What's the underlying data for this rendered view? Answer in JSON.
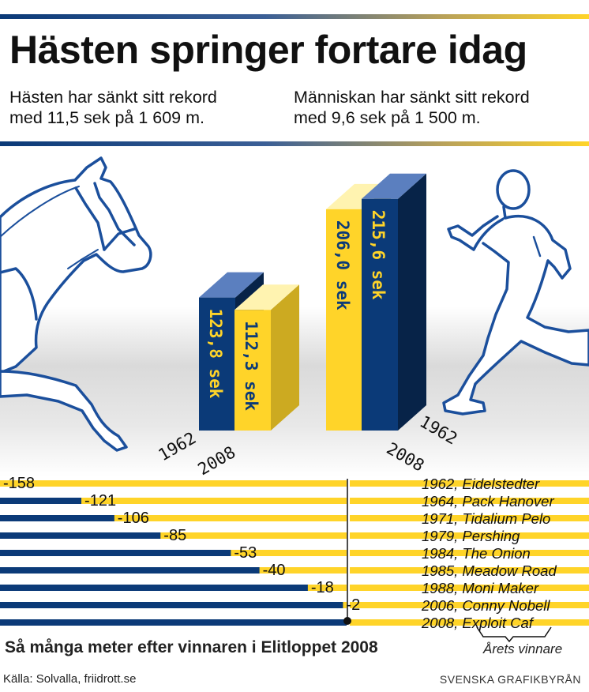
{
  "colors": {
    "navy": "#0b3a78",
    "yellow": "#ffd429",
    "outline_blue": "#1b4f9c",
    "floor_gray": "#cfcfcf"
  },
  "header": {
    "title": "Hästen springer fortare idag",
    "sub_left_1": "Hästen har sänkt sitt rekord",
    "sub_left_2": "med 11,5 sek på 1 609 m.",
    "sub_right_1": "Människan har sänkt sitt rekord",
    "sub_right_2": "med 9,6 sek på 1 500 m."
  },
  "icons": [
    "horse-head-icon",
    "runner-icon"
  ],
  "chart_data": [
    {
      "type": "bar",
      "series": [
        {
          "name": "Häst",
          "categories": [
            "1962",
            "2008"
          ],
          "values": [
            123.8,
            112.3
          ],
          "labels": [
            "123,8 sek",
            "112,3 sek"
          ],
          "colors": [
            "#0b3a78",
            "#ffd429"
          ]
        },
        {
          "name": "Människa",
          "categories": [
            "2008",
            "1962"
          ],
          "values": [
            206.0,
            215.6
          ],
          "labels": [
            "206,0 sek",
            "215,6 sek"
          ],
          "colors": [
            "#ffd429",
            "#0b3a78"
          ]
        }
      ]
    },
    {
      "type": "bar",
      "orientation": "horizontal",
      "title": "Så många meter efter vinnaren i Elitloppet 2008",
      "categories": [
        "1962, Eidelstedter",
        "1964, Pack Hanover",
        "1971, Tidalium Pelo",
        "1979, Pershing",
        "1984, The Onion",
        "1985, Meadow Road",
        "1988, Moni Maker",
        "2006, Conny Nobell",
        "2008, Exploit Caf"
      ],
      "values": [
        -158,
        -121,
        -106,
        -85,
        -53,
        -40,
        -18,
        -2,
        0
      ],
      "labels": [
        "-158",
        "-121",
        "-106",
        "-85",
        "-53",
        "-40",
        "-18",
        "-2",
        ""
      ],
      "annotation": "Årets vinnare"
    }
  ],
  "footer": {
    "source": "Källa: Solvalla, friidrott.se",
    "credit": "SVENSKA GRAFIKBYRÅN"
  }
}
